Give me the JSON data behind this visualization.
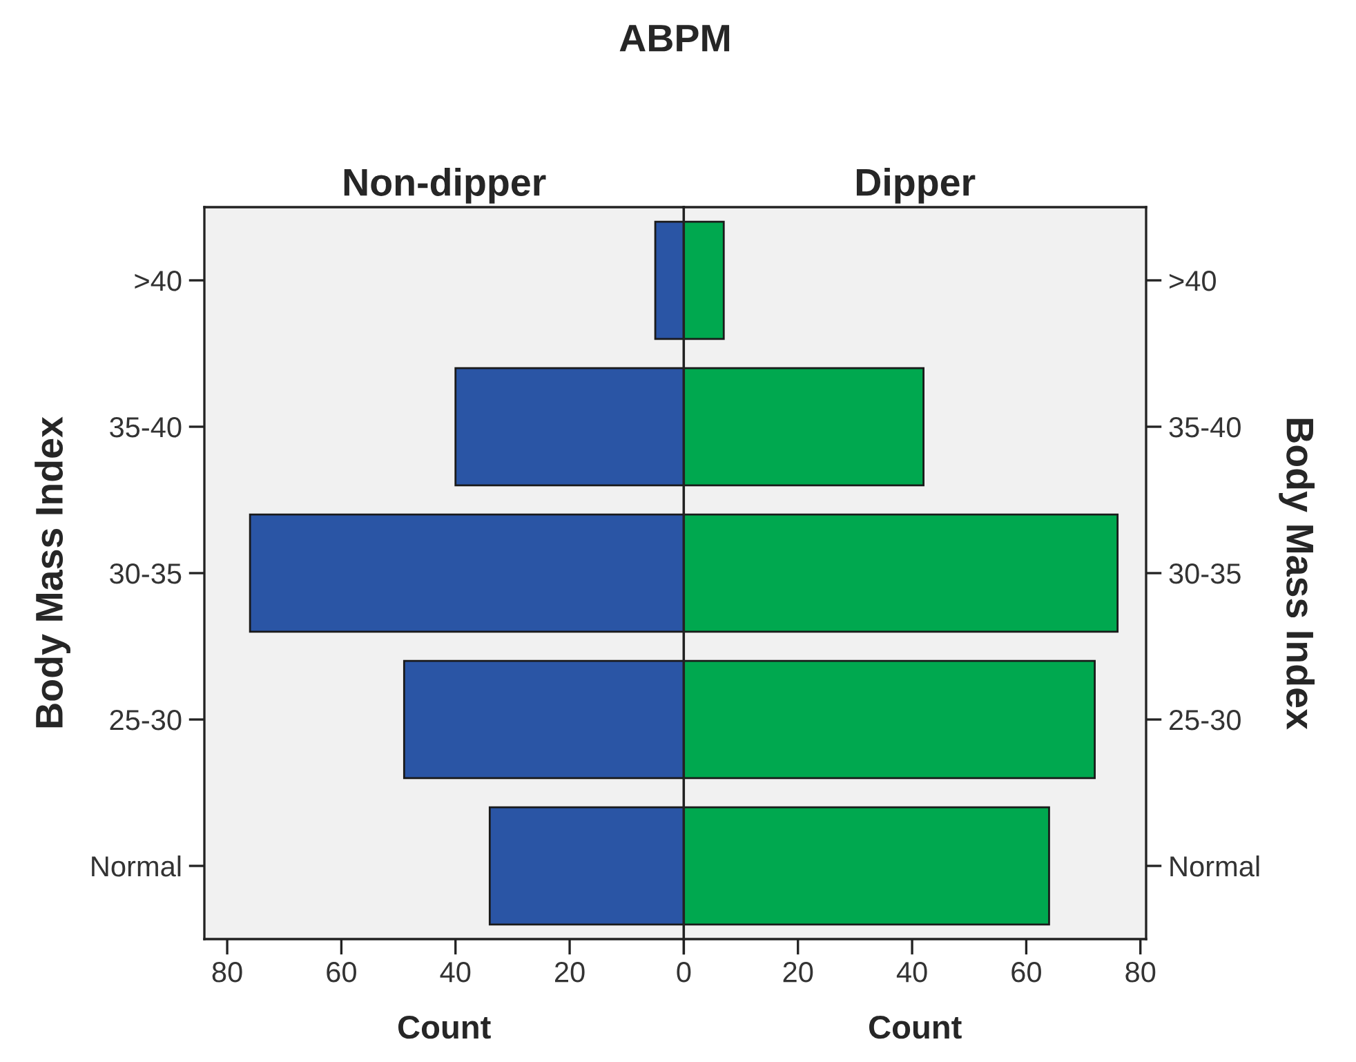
{
  "chart_data": [
    {
      "type": "bar",
      "orientation": "horizontal",
      "title": "ABPM",
      "subtitle": "Non-dipper",
      "xlabel": "Count",
      "ylabel": "Body Mass Index",
      "categories": [
        ">40",
        "35-40",
        "30-35",
        "25-30",
        "Normal"
      ],
      "values": [
        5,
        40,
        76,
        49,
        34
      ],
      "color": "#2a55a5",
      "xlim": [
        84,
        0
      ],
      "xticks": [
        80,
        60,
        40,
        20,
        {
          "value": 0,
          "label": null
        }
      ],
      "grid": false,
      "legend": false
    },
    {
      "type": "bar",
      "orientation": "horizontal",
      "subtitle": "Dipper",
      "xlabel": "Count",
      "ylabel": "Body Mass Index",
      "categories": [
        ">40",
        "35-40",
        "30-35",
        "25-30",
        "Normal"
      ],
      "values": [
        7,
        42,
        76,
        72,
        64
      ],
      "color": "#00a84f",
      "xlim": [
        0,
        81
      ],
      "xticks": [
        0,
        20,
        40,
        60,
        80
      ],
      "grid": false,
      "legend": false
    }
  ]
}
